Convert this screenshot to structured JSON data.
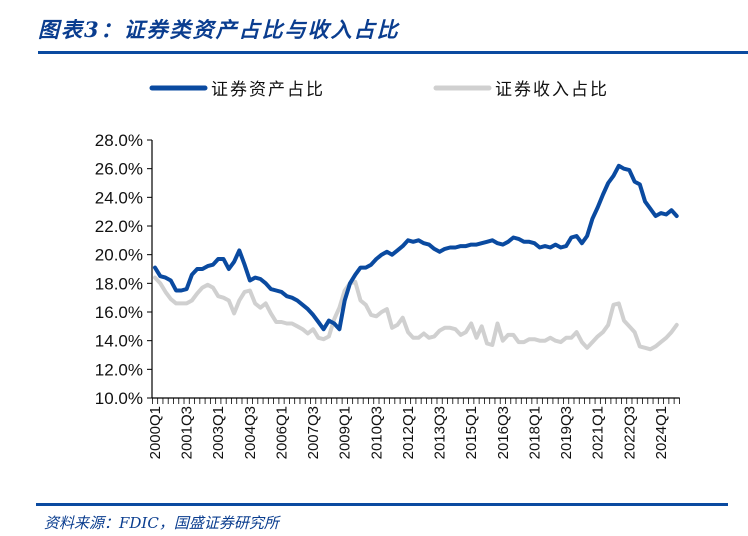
{
  "title": "图表3：证券类资产占比与收入占比",
  "source": "资料来源：FDIC，国盛证券研究所",
  "chart_data": {
    "type": "line",
    "title": "证券类资产占比与收入占比",
    "xlabel": "",
    "ylabel": "",
    "ylim": [
      10,
      28
    ],
    "yticks": [
      "10.0%",
      "12.0%",
      "14.0%",
      "16.0%",
      "18.0%",
      "20.0%",
      "22.0%",
      "24.0%",
      "26.0%",
      "28.0%"
    ],
    "xtick_labels": [
      "2000Q1",
      "2001Q3",
      "2003Q1",
      "2004Q3",
      "2006Q1",
      "2007Q3",
      "2009Q1",
      "2010Q3",
      "2012Q1",
      "2013Q3",
      "2015Q1",
      "2016Q3",
      "2018Q1",
      "2019Q3",
      "2021Q1",
      "2022Q3",
      "2024Q1"
    ],
    "x_start": "2000Q1",
    "x_end": "2024Q4",
    "legend_position": "top",
    "grid": false,
    "series": [
      {
        "name": "证券资产占比",
        "color": "#0a4aa0",
        "values": [
          19.1,
          18.5,
          18.4,
          18.2,
          17.5,
          17.5,
          17.6,
          18.6,
          19.0,
          19.0,
          19.2,
          19.3,
          19.7,
          19.7,
          19.0,
          19.5,
          20.3,
          19.3,
          18.2,
          18.4,
          18.3,
          18.0,
          17.6,
          17.5,
          17.4,
          17.1,
          17.0,
          16.8,
          16.5,
          16.2,
          15.8,
          15.3,
          14.8,
          15.4,
          15.2,
          14.8,
          16.8,
          18.0,
          18.6,
          19.1,
          19.1,
          19.3,
          19.7,
          20.0,
          20.2,
          20.0,
          20.3,
          20.6,
          21.0,
          20.9,
          21.0,
          20.8,
          20.7,
          20.4,
          20.2,
          20.4,
          20.5,
          20.5,
          20.6,
          20.6,
          20.7,
          20.7,
          20.8,
          20.9,
          21.0,
          20.8,
          20.7,
          20.9,
          21.2,
          21.1,
          20.9,
          20.9,
          20.8,
          20.5,
          20.6,
          20.5,
          20.7,
          20.5,
          20.6,
          21.2,
          21.3,
          20.8,
          21.3,
          22.5,
          23.3,
          24.2,
          25.0,
          25.5,
          26.2,
          26.0,
          25.9,
          25.1,
          24.9,
          23.7,
          23.2,
          22.7,
          22.9,
          22.8,
          23.1,
          22.7
        ]
      },
      {
        "name": "证券收入占比",
        "color": "#d0d0d0",
        "values": [
          18.4,
          18.0,
          17.4,
          16.9,
          16.6,
          16.6,
          16.6,
          16.8,
          17.3,
          17.7,
          17.9,
          17.7,
          17.1,
          17.0,
          16.8,
          15.9,
          16.8,
          17.4,
          17.5,
          16.6,
          16.3,
          16.6,
          15.9,
          15.3,
          15.3,
          15.2,
          15.2,
          15.0,
          14.8,
          14.5,
          14.8,
          14.2,
          14.1,
          14.3,
          15.5,
          16.3,
          17.5,
          18.0,
          18.1,
          16.8,
          16.5,
          15.8,
          15.7,
          16.0,
          16.2,
          14.9,
          15.1,
          15.6,
          14.6,
          14.2,
          14.2,
          14.5,
          14.2,
          14.3,
          14.7,
          14.9,
          14.9,
          14.8,
          14.4,
          14.6,
          15.2,
          14.2,
          15.0,
          13.8,
          13.7,
          15.2,
          14.0,
          14.4,
          14.4,
          13.9,
          13.9,
          14.1,
          14.1,
          14.0,
          14.0,
          14.2,
          14.0,
          13.9,
          14.2,
          14.2,
          14.6,
          13.9,
          13.5,
          13.9,
          14.3,
          14.6,
          15.1,
          16.5,
          16.6,
          15.4,
          15.0,
          14.6,
          13.6,
          13.5,
          13.4,
          13.6,
          13.9,
          14.2,
          14.6,
          15.1
        ]
      }
    ]
  }
}
